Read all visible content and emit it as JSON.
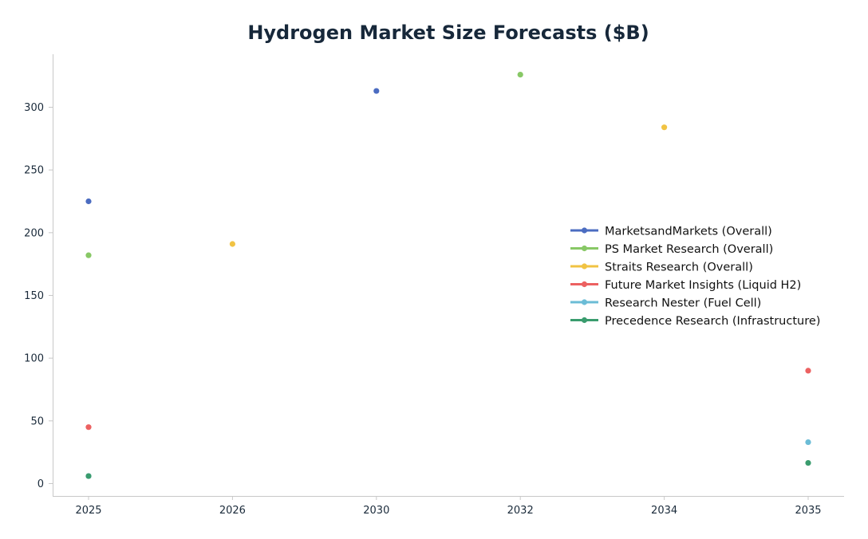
{
  "chart_data": {
    "type": "scatter",
    "title": "Hydrogen Market Size Forecasts ($B)",
    "xlabel": "",
    "ylabel": "",
    "categories": [
      "2025",
      "2026",
      "2030",
      "2032",
      "2034",
      "2035"
    ],
    "ylim": [
      -10,
      340
    ],
    "yticks": [
      0,
      50,
      100,
      150,
      200,
      250,
      300
    ],
    "grid": false,
    "legend_position": "center-right",
    "series": [
      {
        "name": "MarketsandMarkets (Overall)",
        "color": "#4b6cc1",
        "points": [
          {
            "x": "2025",
            "y": 225
          },
          {
            "x": "2030",
            "y": 313
          }
        ]
      },
      {
        "name": "PS Market Research (Overall)",
        "color": "#88c866",
        "points": [
          {
            "x": "2025",
            "y": 182
          },
          {
            "x": "2032",
            "y": 326
          }
        ]
      },
      {
        "name": "Straits Research (Overall)",
        "color": "#f1c343",
        "points": [
          {
            "x": "2026",
            "y": 191
          },
          {
            "x": "2034",
            "y": 284
          }
        ]
      },
      {
        "name": "Future Market Insights (Liquid H2)",
        "color": "#ec6161",
        "points": [
          {
            "x": "2025",
            "y": 45
          },
          {
            "x": "2035",
            "y": 90
          }
        ]
      },
      {
        "name": "Research Nester (Fuel Cell)",
        "color": "#6bbcd6",
        "points": [
          {
            "x": "2025",
            "y": 6
          },
          {
            "x": "2035",
            "y": 33
          }
        ]
      },
      {
        "name": "Precedence Research (Infrastructure)",
        "color": "#3a9c6e",
        "points": [
          {
            "x": "2025",
            "y": 6
          },
          {
            "x": "2035",
            "y": 16.5
          }
        ]
      }
    ]
  }
}
